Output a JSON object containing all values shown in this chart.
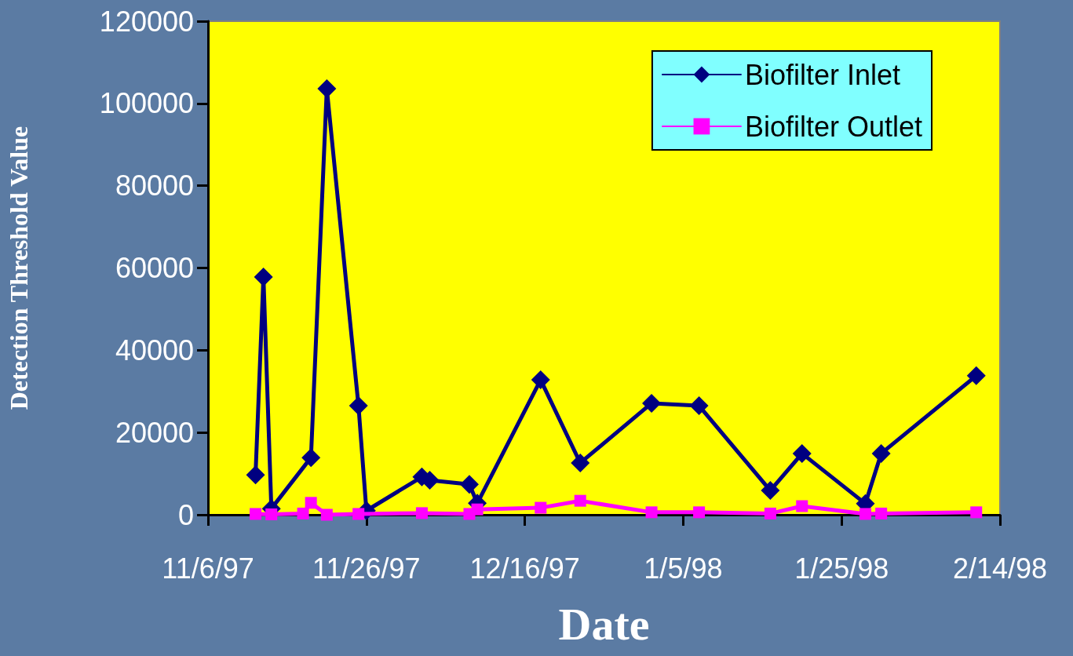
{
  "chart_data": {
    "type": "line",
    "xlabel": "Date",
    "ylabel": "Detection Threshold Value",
    "xlim": [
      "1997-11-06",
      "1998-02-14"
    ],
    "xticks": [
      {
        "value": "1997-11-06",
        "label": "11/6/97"
      },
      {
        "value": "1997-11-26",
        "label": "11/26/97"
      },
      {
        "value": "1997-12-16",
        "label": "12/16/97"
      },
      {
        "value": "1998-01-05",
        "label": "1/5/98"
      },
      {
        "value": "1998-01-25",
        "label": "1/25/98"
      },
      {
        "value": "1998-02-14",
        "label": "2/14/98"
      }
    ],
    "ylim": [
      0,
      120000
    ],
    "yticks": [
      0,
      20000,
      40000,
      60000,
      80000,
      100000,
      120000
    ],
    "grid": false,
    "legend": "top right",
    "line_style": "solid",
    "series": [
      {
        "name": "Biofilter Inlet",
        "color": "#000080",
        "marker": "diamond",
        "x": [
          "1997-11-12",
          "1997-11-13",
          "1997-11-14",
          "1997-11-19",
          "1997-11-21",
          "1997-11-25",
          "1997-11-26",
          "1997-12-03",
          "1997-12-04",
          "1997-12-09",
          "1997-12-10",
          "1997-12-18",
          "1997-12-23",
          "1998-01-01",
          "1998-01-07",
          "1998-01-16",
          "1998-01-20",
          "1998-01-28",
          "1998-01-30",
          "1998-02-11"
        ],
        "values": [
          9700,
          57800,
          1500,
          13900,
          103600,
          26500,
          1000,
          9200,
          8400,
          7400,
          2800,
          32800,
          12600,
          27100,
          26500,
          5900,
          14900,
          2700,
          14900,
          33800
        ]
      },
      {
        "name": "Biofilter Outlet",
        "color": "#ff00ff",
        "marker": "square",
        "x": [
          "1997-11-12",
          "1997-11-14",
          "1997-11-18",
          "1997-11-19",
          "1997-11-21",
          "1997-11-25",
          "1997-12-03",
          "1997-12-09",
          "1997-12-10",
          "1997-12-18",
          "1997-12-23",
          "1998-01-01",
          "1998-01-07",
          "1998-01-16",
          "1998-01-20",
          "1998-01-28",
          "1998-01-30",
          "1998-02-11"
        ],
        "values": [
          200,
          100,
          300,
          2900,
          0,
          200,
          400,
          200,
          1300,
          1700,
          3400,
          600,
          600,
          300,
          2100,
          200,
          300,
          600
        ]
      }
    ]
  }
}
